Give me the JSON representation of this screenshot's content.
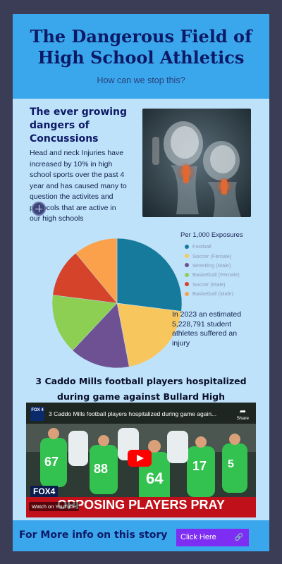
{
  "header": {
    "title": "The Dangerous Field of High School Athletics",
    "subtitle": "How can we stop this?"
  },
  "concussion": {
    "heading": "The ever growing dangers of Concussions",
    "body": "Head and neck Injuries have increased by 10% in high school sports over the past 4 year and has caused many to question the activites and protocols that are active in our high schools"
  },
  "chart_data": {
    "type": "pie",
    "title": "Per 1,000 Exposures",
    "slices": [
      {
        "name": "Football",
        "value": 27,
        "color": "#157a9c"
      },
      {
        "name": "Soccer (Female)",
        "value": 20,
        "color": "#f7c75e"
      },
      {
        "name": "Wrestling (Male)",
        "value": 15,
        "color": "#6e5193"
      },
      {
        "name": "Basketball (Female)",
        "value": 15,
        "color": "#8ccf52"
      },
      {
        "name": "Soccer (Male)",
        "value": 12,
        "color": "#d4432a"
      },
      {
        "name": "Basketball (Male)",
        "value": 11,
        "color": "#fba14b"
      }
    ],
    "legend_position": "top-right"
  },
  "injury_note": "In 2023 an estimated 5,228,791 student athletes suffered an injury",
  "story": {
    "title": "3 Caddo Mills football players hospitalized during game against Bullard High"
  },
  "video": {
    "title": "3 Caddo Mills football players hospitalized during game again...",
    "channel_logo": "FOX 4",
    "share_label": "Share",
    "fox_label": "FOX4",
    "banner_text": "OPPOSING PLAYERS PRAY",
    "watch_label": "Watch on YouTube"
  },
  "footer": {
    "text": "For More info on this story",
    "button_label": "Click Here"
  }
}
